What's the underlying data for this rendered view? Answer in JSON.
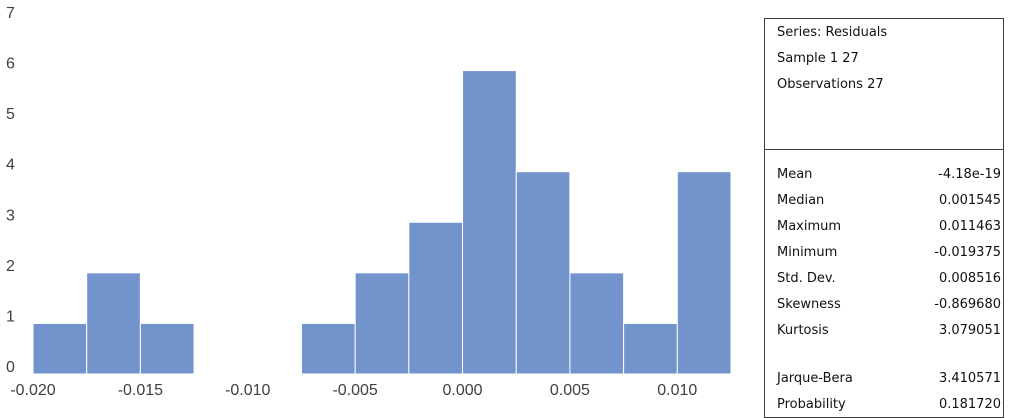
{
  "chart_data": {
    "type": "histogram",
    "bins": [
      -0.02,
      -0.0175,
      -0.015,
      -0.0125,
      -0.01,
      -0.0075,
      -0.005,
      -0.0025,
      0.0,
      0.0025,
      0.005,
      0.0075,
      0.01,
      0.0125
    ],
    "counts": [
      1,
      2,
      1,
      0,
      0,
      1,
      2,
      3,
      6,
      4,
      2,
      1,
      4
    ],
    "ylim": [
      0,
      7
    ],
    "yticks": [
      "0",
      "1",
      "2",
      "3",
      "4",
      "5",
      "6",
      "7"
    ],
    "xticks": [
      "-0.020",
      "-0.015",
      "-0.010",
      "-0.005",
      "0.000",
      "0.005",
      "0.010"
    ],
    "bar_color": "#7293cb",
    "bar_edge_color": "#ffffff",
    "grid": false
  },
  "stats": {
    "series": "Series: Residuals",
    "sample": "Sample 1 27",
    "observations": "Observations 27",
    "rows": [
      {
        "label": "Mean",
        "value": "-4.18e-19"
      },
      {
        "label": "Median",
        "value": "0.001545"
      },
      {
        "label": "Maximum",
        "value": "0.011463"
      },
      {
        "label": "Minimum",
        "value": "-0.019375"
      },
      {
        "label": "Std. Dev.",
        "value": "0.008516"
      },
      {
        "label": "Skewness",
        "value": "-0.869680"
      },
      {
        "label": "Kurtosis",
        "value": "3.079051"
      },
      {
        "label": "Jarque-Bera",
        "value": "3.410571"
      },
      {
        "label": "Probability",
        "value": "0.181720"
      }
    ]
  }
}
